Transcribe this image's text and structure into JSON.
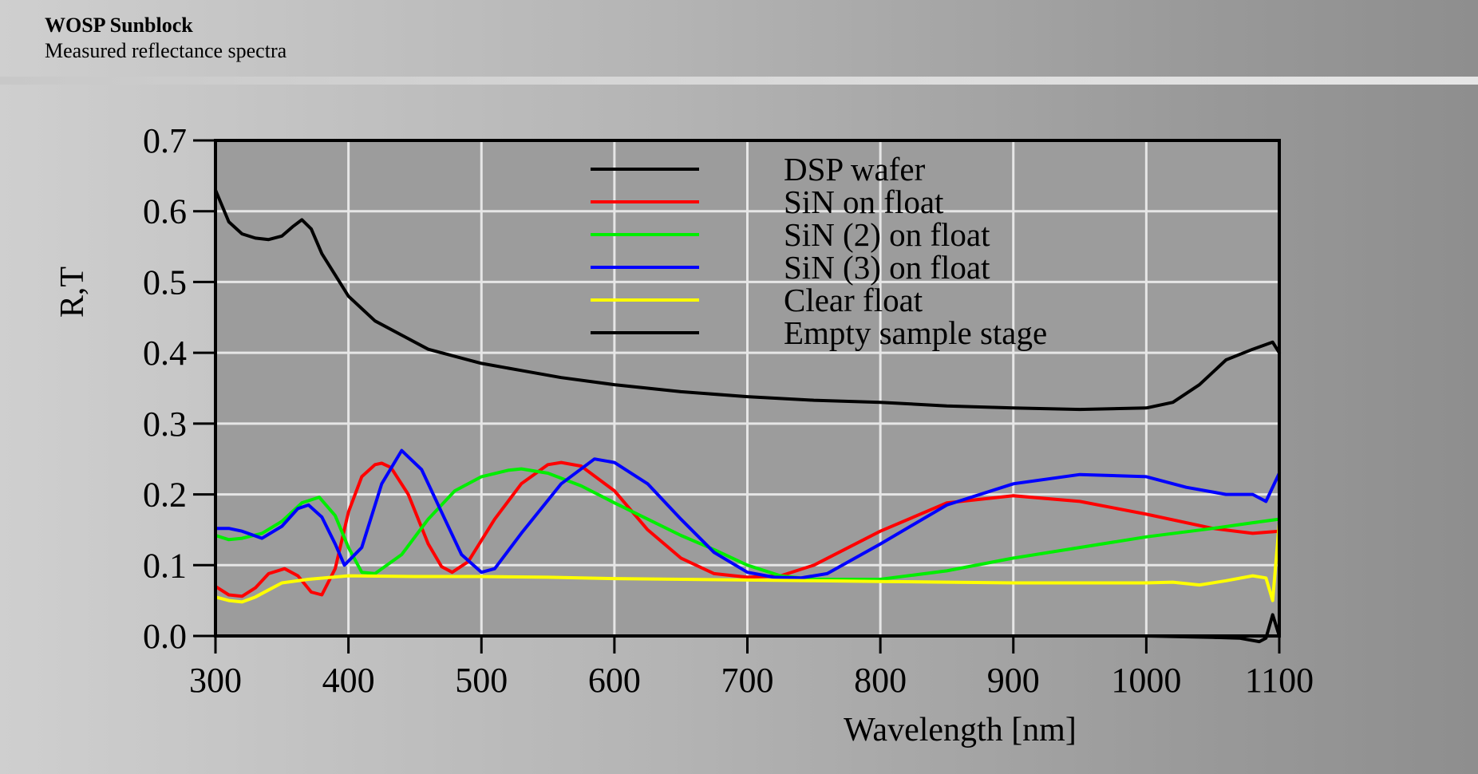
{
  "header": {
    "title": "WOSP Sunblock",
    "subtitle": "Measured reflectance spectra"
  },
  "chart_data": {
    "type": "line",
    "xlabel": "Wavelength [nm]",
    "ylabel": "R,T",
    "xlim": [
      300,
      1100
    ],
    "ylim": [
      0.0,
      0.7
    ],
    "xticks": [
      "300",
      "400",
      "500",
      "600",
      "700",
      "800",
      "900",
      "1000",
      "1100"
    ],
    "yticks": [
      "0.0",
      "0.1",
      "0.2",
      "0.3",
      "0.4",
      "0.5",
      "0.6",
      "0.7"
    ],
    "grid": true,
    "legend_position": "top-center",
    "series": [
      {
        "name": "DSP wafer",
        "color": "#000000",
        "x": [
          300,
          310,
          320,
          330,
          340,
          350,
          358,
          365,
          372,
          380,
          390,
          400,
          420,
          440,
          460,
          480,
          500,
          530,
          560,
          600,
          650,
          700,
          750,
          800,
          850,
          900,
          950,
          1000,
          1020,
          1040,
          1060,
          1080,
          1095,
          1100
        ],
        "y": [
          0.63,
          0.585,
          0.568,
          0.562,
          0.56,
          0.565,
          0.578,
          0.588,
          0.575,
          0.54,
          0.51,
          0.48,
          0.445,
          0.425,
          0.405,
          0.395,
          0.385,
          0.375,
          0.365,
          0.355,
          0.345,
          0.338,
          0.333,
          0.33,
          0.325,
          0.322,
          0.32,
          0.322,
          0.33,
          0.355,
          0.39,
          0.405,
          0.415,
          0.4
        ]
      },
      {
        "name": "SiN on float",
        "color": "#ff0000",
        "x": [
          300,
          310,
          320,
          330,
          340,
          352,
          362,
          372,
          380,
          390,
          400,
          410,
          420,
          425,
          432,
          445,
          460,
          470,
          478,
          490,
          510,
          530,
          550,
          560,
          575,
          600,
          625,
          650,
          675,
          700,
          725,
          750,
          800,
          850,
          900,
          950,
          1000,
          1050,
          1080,
          1100
        ],
        "y": [
          0.07,
          0.058,
          0.056,
          0.068,
          0.088,
          0.095,
          0.085,
          0.062,
          0.058,
          0.095,
          0.175,
          0.225,
          0.242,
          0.244,
          0.238,
          0.2,
          0.13,
          0.098,
          0.09,
          0.105,
          0.165,
          0.215,
          0.242,
          0.245,
          0.24,
          0.205,
          0.15,
          0.11,
          0.088,
          0.083,
          0.085,
          0.1,
          0.148,
          0.188,
          0.198,
          0.19,
          0.172,
          0.152,
          0.145,
          0.148
        ]
      },
      {
        "name": "SiN (2) on float",
        "color": "#00ee00",
        "x": [
          300,
          310,
          320,
          335,
          350,
          365,
          378,
          390,
          400,
          410,
          420,
          440,
          460,
          480,
          500,
          520,
          530,
          550,
          575,
          600,
          625,
          650,
          675,
          700,
          725,
          750,
          800,
          850,
          900,
          950,
          1000,
          1050,
          1080,
          1100
        ],
        "y": [
          0.142,
          0.136,
          0.138,
          0.145,
          0.162,
          0.188,
          0.196,
          0.17,
          0.125,
          0.09,
          0.088,
          0.115,
          0.165,
          0.205,
          0.225,
          0.234,
          0.236,
          0.23,
          0.212,
          0.188,
          0.165,
          0.142,
          0.122,
          0.1,
          0.085,
          0.08,
          0.08,
          0.092,
          0.11,
          0.125,
          0.14,
          0.152,
          0.16,
          0.165
        ]
      },
      {
        "name": "SiN (3) on float",
        "color": "#0000ff",
        "x": [
          300,
          310,
          320,
          335,
          350,
          362,
          370,
          380,
          390,
          397,
          410,
          425,
          440,
          455,
          470,
          485,
          500,
          510,
          530,
          560,
          585,
          600,
          625,
          650,
          675,
          700,
          720,
          740,
          760,
          800,
          850,
          900,
          950,
          1000,
          1030,
          1060,
          1080,
          1090,
          1100
        ],
        "y": [
          0.152,
          0.152,
          0.148,
          0.138,
          0.155,
          0.18,
          0.185,
          0.168,
          0.13,
          0.1,
          0.125,
          0.215,
          0.262,
          0.235,
          0.175,
          0.115,
          0.09,
          0.095,
          0.145,
          0.215,
          0.25,
          0.245,
          0.215,
          0.165,
          0.118,
          0.09,
          0.083,
          0.082,
          0.088,
          0.13,
          0.185,
          0.215,
          0.228,
          0.225,
          0.21,
          0.2,
          0.2,
          0.19,
          0.23
        ]
      },
      {
        "name": "Clear float",
        "color": "#ffff00",
        "x": [
          300,
          310,
          320,
          330,
          340,
          350,
          370,
          400,
          450,
          500,
          550,
          600,
          650,
          700,
          750,
          800,
          850,
          900,
          950,
          1000,
          1020,
          1040,
          1060,
          1080,
          1090,
          1095,
          1100
        ],
        "y": [
          0.055,
          0.05,
          0.048,
          0.055,
          0.065,
          0.075,
          0.08,
          0.085,
          0.084,
          0.084,
          0.083,
          0.081,
          0.08,
          0.079,
          0.078,
          0.077,
          0.076,
          0.075,
          0.075,
          0.075,
          0.076,
          0.072,
          0.078,
          0.085,
          0.082,
          0.05,
          0.16
        ]
      },
      {
        "name": "Empty sample stage",
        "color": "#000000",
        "x": [
          300,
          400,
          500,
          600,
          700,
          800,
          900,
          1000,
          1050,
          1070,
          1085,
          1090,
          1095,
          1100
        ],
        "y": [
          0.0,
          0.0,
          0.0,
          0.0,
          0.0,
          0.0,
          0.0,
          0.0,
          -0.002,
          -0.003,
          -0.008,
          -0.003,
          0.03,
          0.0
        ]
      }
    ]
  }
}
